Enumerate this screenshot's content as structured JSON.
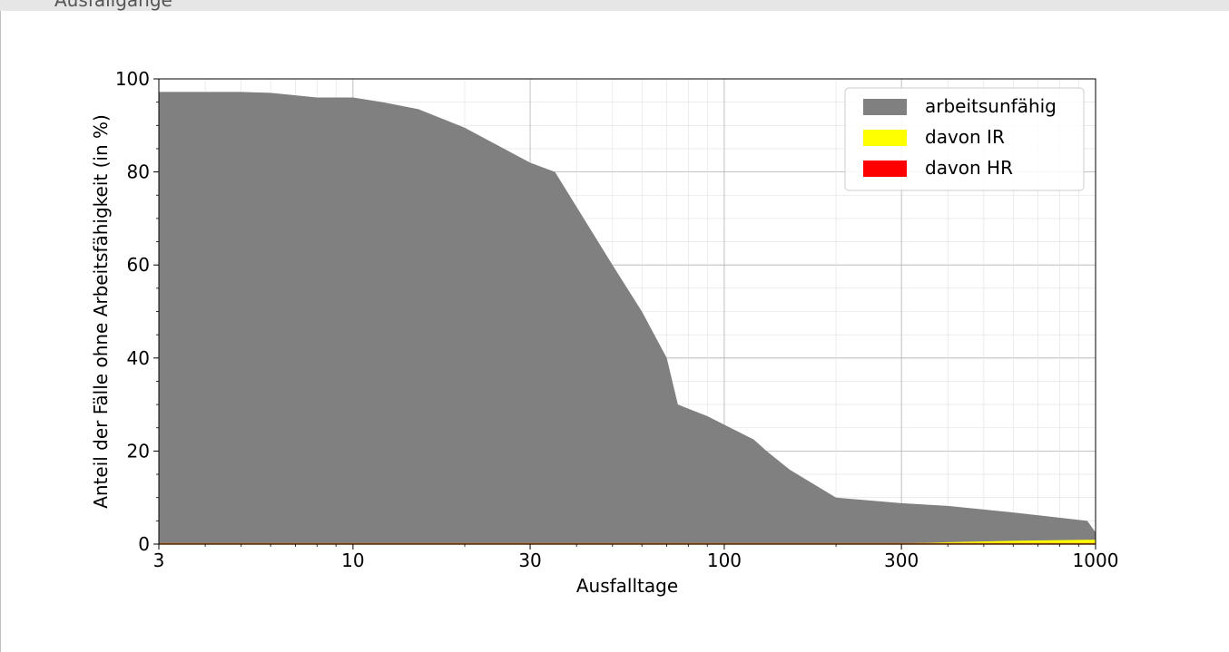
{
  "header": {
    "text": "Ausfallgänge"
  },
  "chart_data": {
    "type": "area",
    "x_scale": "log",
    "xlim": [
      3,
      1000
    ],
    "ylim": [
      0,
      100
    ],
    "xlabel": "Ausfalltage",
    "ylabel": "Anteil der Fälle ohne Arbeitsfähigkeit (in %)",
    "x_ticks": [
      3,
      10,
      30,
      100,
      300,
      1000
    ],
    "y_ticks": [
      0,
      20,
      40,
      60,
      80,
      100
    ],
    "grid": true,
    "legend_position": "top-right",
    "series": [
      {
        "name": "arbeitsunfähig",
        "color": "#808080",
        "x": [
          3,
          5,
          6,
          8,
          10,
          12,
          15,
          20,
          30,
          35,
          50,
          60,
          70,
          75,
          90,
          110,
          120,
          130,
          150,
          200,
          300,
          400,
          600,
          950,
          1000
        ],
        "y": [
          97.2,
          97.2,
          97.0,
          96.0,
          96.0,
          95.0,
          93.5,
          89.5,
          82.0,
          80.0,
          60.0,
          50.0,
          40.0,
          30.0,
          27.5,
          24.0,
          22.5,
          20.0,
          16.0,
          10.0,
          8.8,
          8.2,
          6.8,
          5.0,
          2.5
        ]
      },
      {
        "name": "davon IR",
        "color": "#ffff00",
        "x": [
          3,
          300,
          400,
          600,
          950,
          1000
        ],
        "y": [
          0,
          0,
          0.3,
          0.6,
          0.8,
          0.8
        ]
      },
      {
        "name": "davon HR",
        "color": "#ff0000",
        "x": [
          3,
          1000
        ],
        "y": [
          0,
          0
        ]
      }
    ]
  }
}
